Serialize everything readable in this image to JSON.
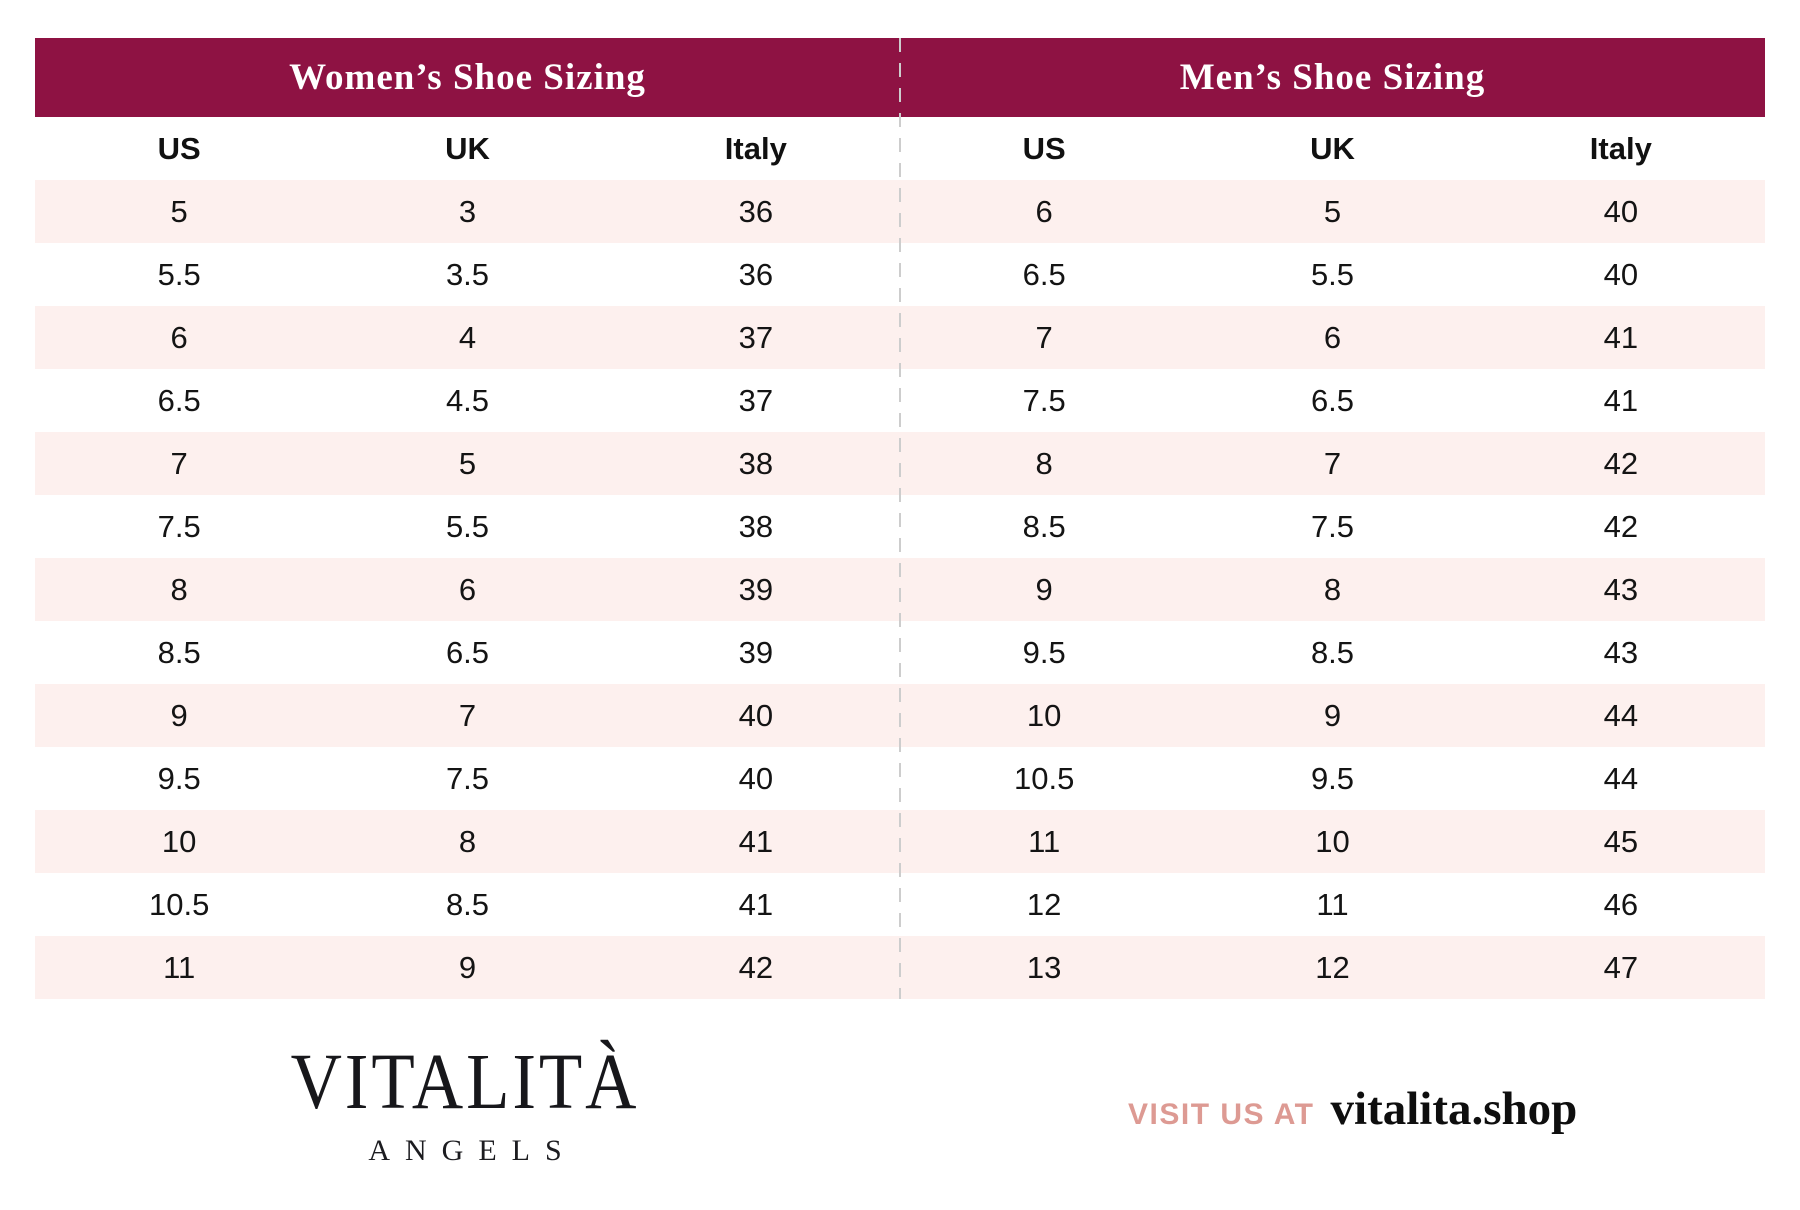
{
  "colors": {
    "header_bg": "#8E1243",
    "row_stripe": "#FDF0EE",
    "divider": "#cdcdcd",
    "visit_accent": "#DD9A93"
  },
  "women": {
    "title": "Women’s Shoe Sizing",
    "columns": [
      "US",
      "UK",
      "Italy"
    ],
    "rows": [
      [
        "5",
        "3",
        "36"
      ],
      [
        "5.5",
        "3.5",
        "36"
      ],
      [
        "6",
        "4",
        "37"
      ],
      [
        "6.5",
        "4.5",
        "37"
      ],
      [
        "7",
        "5",
        "38"
      ],
      [
        "7.5",
        "5.5",
        "38"
      ],
      [
        "8",
        "6",
        "39"
      ],
      [
        "8.5",
        "6.5",
        "39"
      ],
      [
        "9",
        "7",
        "40"
      ],
      [
        "9.5",
        "7.5",
        "40"
      ],
      [
        "10",
        "8",
        "41"
      ],
      [
        "10.5",
        "8.5",
        "41"
      ],
      [
        "11",
        "9",
        "42"
      ]
    ]
  },
  "men": {
    "title": "Men’s Shoe Sizing",
    "columns": [
      "US",
      "UK",
      "Italy"
    ],
    "rows": [
      [
        "6",
        "5",
        "40"
      ],
      [
        "6.5",
        "5.5",
        "40"
      ],
      [
        "7",
        "6",
        "41"
      ],
      [
        "7.5",
        "6.5",
        "41"
      ],
      [
        "8",
        "7",
        "42"
      ],
      [
        "8.5",
        "7.5",
        "42"
      ],
      [
        "9",
        "8",
        "43"
      ],
      [
        "9.5",
        "8.5",
        "43"
      ],
      [
        "10",
        "9",
        "44"
      ],
      [
        "10.5",
        "9.5",
        "44"
      ],
      [
        "11",
        "10",
        "45"
      ],
      [
        "12",
        "11",
        "46"
      ],
      [
        "13",
        "12",
        "47"
      ]
    ]
  },
  "footer": {
    "brand_name": "VITALITÀ",
    "brand_sub": "ANGELS",
    "visit_label": "VISIT US AT",
    "visit_url": "vitalita.shop"
  }
}
